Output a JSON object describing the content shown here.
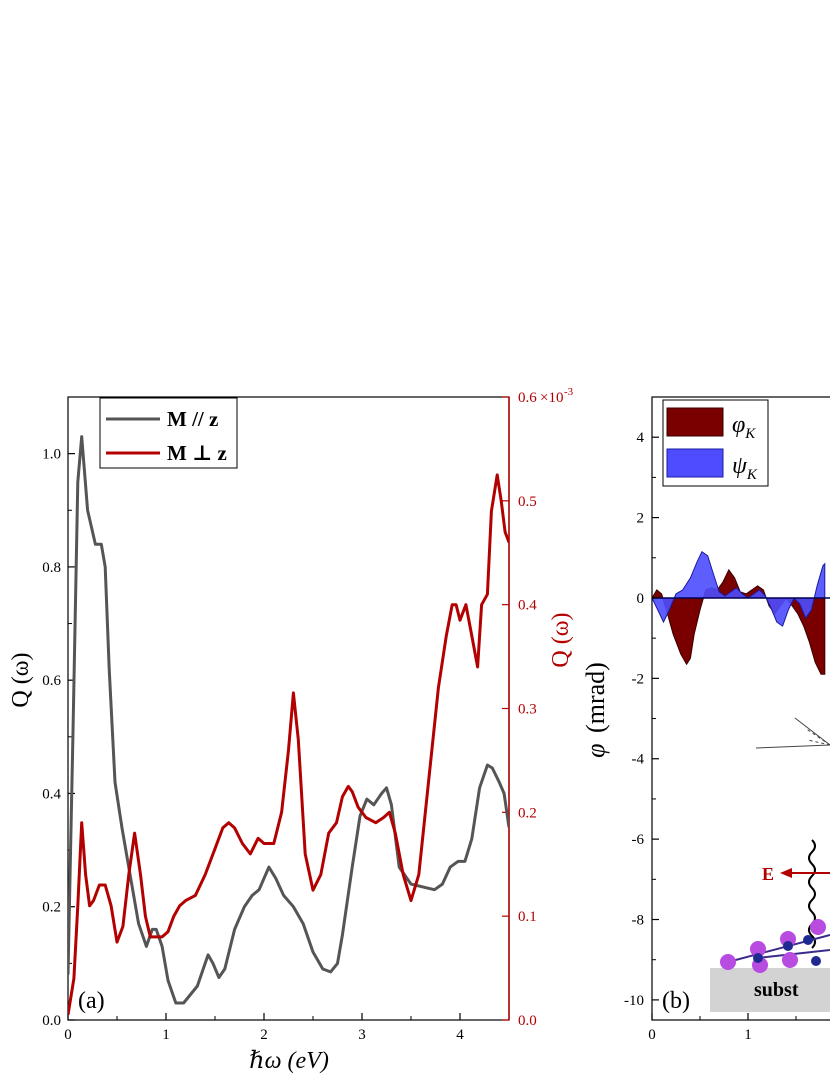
{
  "chart_data": [
    {
      "panel": "(a)",
      "type": "line",
      "xlabel": "ℏω (eV)",
      "ylabel_left": "Q (ω)",
      "ylabel_right": "Q (ω)",
      "xlim": [
        0,
        4.5
      ],
      "ylim_left": [
        0,
        1.1
      ],
      "ylim_right": [
        0,
        0.0006
      ],
      "right_axis_multiplier": "×10",
      "right_axis_exponent": "-3",
      "x_ticks": [
        "0",
        "1",
        "2",
        "3",
        "4"
      ],
      "y_ticks_left": [
        "0.0",
        "0.2",
        "0.4",
        "0.6",
        "0.8",
        "1.0"
      ],
      "y_ticks_right": [
        "0.0",
        "0.1",
        "0.2",
        "0.3",
        "0.4",
        "0.5",
        "0.6"
      ],
      "legend_position": "top-left",
      "colors": {
        "gray": "#555555",
        "red": "#b30000"
      },
      "series": [
        {
          "name": "M // z",
          "axis": "left",
          "color": "#555555",
          "x": [
            0,
            0.05,
            0.1,
            0.14,
            0.2,
            0.28,
            0.34,
            0.38,
            0.42,
            0.48,
            0.55,
            0.65,
            0.72,
            0.8,
            0.86,
            0.9,
            0.96,
            1.02,
            1.1,
            1.18,
            1.25,
            1.32,
            1.38,
            1.43,
            1.48,
            1.54,
            1.6,
            1.7,
            1.8,
            1.88,
            1.95,
            2.0,
            2.05,
            2.12,
            2.2,
            2.3,
            2.4,
            2.5,
            2.6,
            2.68,
            2.75,
            2.8,
            2.9,
            2.98,
            3.05,
            3.12,
            3.2,
            3.25,
            3.3,
            3.38,
            3.5,
            3.62,
            3.74,
            3.82,
            3.9,
            3.98,
            4.05,
            4.12,
            4.2,
            4.28,
            4.33,
            4.4,
            4.45,
            4.5
          ],
          "values": [
            0.08,
            0.5,
            0.95,
            1.03,
            0.9,
            0.84,
            0.84,
            0.8,
            0.62,
            0.42,
            0.34,
            0.24,
            0.17,
            0.13,
            0.16,
            0.16,
            0.13,
            0.07,
            0.03,
            0.03,
            0.045,
            0.06,
            0.09,
            0.115,
            0.1,
            0.075,
            0.09,
            0.16,
            0.2,
            0.22,
            0.23,
            0.25,
            0.27,
            0.25,
            0.22,
            0.2,
            0.17,
            0.12,
            0.09,
            0.085,
            0.1,
            0.15,
            0.27,
            0.36,
            0.39,
            0.38,
            0.4,
            0.41,
            0.38,
            0.27,
            0.24,
            0.235,
            0.23,
            0.24,
            0.27,
            0.28,
            0.28,
            0.32,
            0.41,
            0.45,
            0.445,
            0.42,
            0.4,
            0.34
          ]
        },
        {
          "name": "M ⊥ z",
          "axis": "right",
          "color": "#b30000",
          "x": [
            0,
            0.06,
            0.1,
            0.14,
            0.18,
            0.22,
            0.26,
            0.32,
            0.38,
            0.44,
            0.5,
            0.56,
            0.62,
            0.68,
            0.74,
            0.79,
            0.84,
            0.9,
            0.96,
            1.02,
            1.08,
            1.14,
            1.2,
            1.3,
            1.4,
            1.5,
            1.58,
            1.64,
            1.7,
            1.78,
            1.86,
            1.94,
            2.0,
            2.1,
            2.18,
            2.25,
            2.3,
            2.35,
            2.42,
            2.5,
            2.58,
            2.66,
            2.74,
            2.8,
            2.86,
            2.9,
            2.96,
            3.04,
            3.14,
            3.22,
            3.28,
            3.34,
            3.42,
            3.5,
            3.58,
            3.68,
            3.78,
            3.86,
            3.92,
            3.96,
            4.0,
            4.06,
            4.12,
            4.18,
            4.22,
            4.28,
            4.32,
            4.38,
            4.42,
            4.46,
            4.5
          ],
          "values": [
            0.005,
            0.04,
            0.11,
            0.19,
            0.14,
            0.11,
            0.115,
            0.13,
            0.13,
            0.11,
            0.075,
            0.09,
            0.14,
            0.18,
            0.14,
            0.1,
            0.08,
            0.08,
            0.08,
            0.085,
            0.1,
            0.11,
            0.115,
            0.12,
            0.14,
            0.165,
            0.185,
            0.19,
            0.185,
            0.17,
            0.16,
            0.175,
            0.17,
            0.17,
            0.2,
            0.26,
            0.315,
            0.27,
            0.16,
            0.125,
            0.14,
            0.18,
            0.19,
            0.215,
            0.225,
            0.22,
            0.205,
            0.195,
            0.19,
            0.195,
            0.2,
            0.18,
            0.14,
            0.115,
            0.14,
            0.23,
            0.32,
            0.37,
            0.4,
            0.4,
            0.385,
            0.4,
            0.37,
            0.34,
            0.4,
            0.41,
            0.49,
            0.525,
            0.5,
            0.47,
            0.46
          ]
        }
      ]
    },
    {
      "panel": "(b)",
      "type": "area",
      "ylabel": "φ (mrad)",
      "ylabel_symbol": "φ",
      "ylabel_unit": "(mrad)",
      "xlim": [
        0,
        1.8
      ],
      "ylim": [
        -10.5,
        5
      ],
      "x_ticks": [
        "0",
        "1"
      ],
      "y_ticks": [
        "4",
        "2",
        "0",
        "-2",
        "-4",
        "-6",
        "-8",
        "-10"
      ],
      "legend_position": "top-left",
      "colors": {
        "dark_red": "#7a0000",
        "blue": "#4d4dff"
      },
      "series": [
        {
          "name": "φK",
          "symbol": "φ",
          "subscript": "K",
          "color": "#7a0000",
          "x": [
            0,
            0.05,
            0.1,
            0.15,
            0.22,
            0.3,
            0.36,
            0.4,
            0.44,
            0.5,
            0.56,
            0.62,
            0.68,
            0.74,
            0.8,
            0.86,
            0.92,
            0.98,
            1.04,
            1.1,
            1.16,
            1.22,
            1.28,
            1.34,
            1.4,
            1.46,
            1.52,
            1.58,
            1.64,
            1.7,
            1.76,
            1.8
          ],
          "values": [
            0,
            0.2,
            0.1,
            -0.3,
            -0.9,
            -1.4,
            -1.65,
            -1.5,
            -0.9,
            -0.3,
            0.2,
            0.25,
            0.2,
            0.4,
            0.7,
            0.5,
            0.15,
            0.1,
            0.2,
            0.3,
            0.2,
            -0.2,
            -0.4,
            -0.2,
            0.0,
            -0.2,
            -0.4,
            -0.7,
            -1.1,
            -1.6,
            -1.9,
            -1.9
          ]
        },
        {
          "name": "ψK",
          "symbol": "ψ",
          "subscript": "K",
          "color": "#4d4dff",
          "x": [
            0,
            0.06,
            0.12,
            0.18,
            0.25,
            0.32,
            0.4,
            0.47,
            0.52,
            0.58,
            0.64,
            0.7,
            0.76,
            0.82,
            0.88,
            0.94,
            1.0,
            1.06,
            1.12,
            1.18,
            1.24,
            1.3,
            1.36,
            1.42,
            1.48,
            1.54,
            1.6,
            1.66,
            1.72,
            1.78,
            1.8
          ],
          "values": [
            0,
            -0.3,
            -0.6,
            -0.3,
            0.1,
            0.2,
            0.5,
            0.9,
            1.15,
            1.05,
            0.6,
            0.15,
            0.05,
            0.15,
            0.25,
            0.1,
            0.0,
            0.1,
            0.2,
            0.05,
            -0.25,
            -0.6,
            -0.7,
            -0.3,
            0.0,
            -0.15,
            -0.5,
            -0.3,
            0.3,
            0.8,
            0.85
          ]
        }
      ],
      "inset_labels": {
        "field": "E",
        "substrate": "subst"
      }
    }
  ]
}
